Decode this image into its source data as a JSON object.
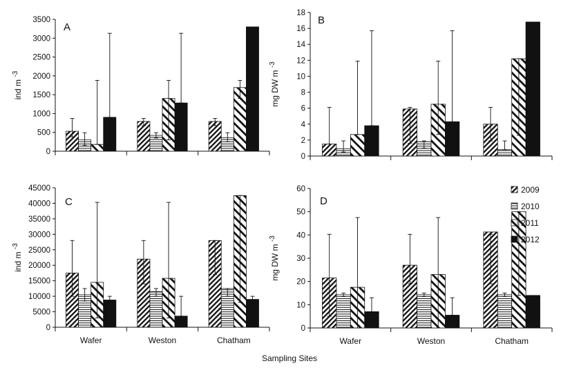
{
  "figure": {
    "xlabel": "Sampling Sites"
  },
  "legend": {
    "entries": [
      {
        "label": "2009",
        "pattern": "diag"
      },
      {
        "label": "2010",
        "pattern": "horiz"
      },
      {
        "label": "2011",
        "pattern": "diagwide"
      },
      {
        "label": "2012",
        "pattern": "solid"
      }
    ]
  },
  "colors": {
    "ink": "#111111",
    "background": "#ffffff"
  },
  "chart_data": [
    {
      "type": "bar",
      "panel_label": "A",
      "ylabel": "ind m",
      "ylabel_sup": "-3",
      "categories": [
        "Wafer",
        "Weston",
        "Chatham"
      ],
      "ylim": [
        0,
        3500
      ],
      "yticks": [
        0,
        500,
        1000,
        1500,
        2000,
        2500,
        3000,
        3500
      ],
      "tick_labels": [
        "0",
        "500",
        "1000",
        "1500",
        "2000",
        "2500",
        "3000",
        "3500"
      ],
      "show_category_labels": false,
      "series": [
        {
          "name": "2009",
          "values": [
            530,
            790,
            790
          ],
          "err_low": [
            380,
            680,
            680
          ],
          "err_high": [
            870,
            870,
            870
          ]
        },
        {
          "name": "2010",
          "values": [
            300,
            420,
            360
          ],
          "err_low": [
            150,
            350,
            250
          ],
          "err_high": [
            490,
            490,
            490
          ]
        },
        {
          "name": "2011",
          "values": [
            180,
            1400,
            1690
          ],
          "err_low": [
            180,
            300,
            1400
          ],
          "err_high": [
            1880,
            1880,
            1880
          ]
        },
        {
          "name": "2012",
          "values": [
            900,
            1280,
            3300
          ],
          "err_low": [
            900,
            1280,
            3300
          ],
          "err_high": [
            3130,
            3130,
            3300
          ]
        }
      ]
    },
    {
      "type": "bar",
      "panel_label": "B",
      "ylabel": "mg DW m",
      "ylabel_sup": "-3",
      "categories": [
        "Wafer",
        "Weston",
        "Chatham"
      ],
      "ylim": [
        0,
        18
      ],
      "yticks": [
        0,
        2,
        4,
        6,
        8,
        10,
        12,
        14,
        16,
        18
      ],
      "tick_labels": [
        "0",
        "2",
        "4",
        "6",
        "8",
        "10",
        "12",
        "14",
        "16",
        "18"
      ],
      "show_category_labels": false,
      "series": [
        {
          "name": "2009",
          "values": [
            1.5,
            5.9,
            4.0
          ],
          "err_low": [
            1.5,
            1.6,
            1.9
          ],
          "err_high": [
            6.1,
            6.1,
            6.1
          ]
        },
        {
          "name": "2010",
          "values": [
            0.9,
            1.8,
            0.8
          ],
          "err_low": [
            0.5,
            1.0,
            0.8
          ],
          "err_high": [
            1.9,
            1.9,
            1.9
          ]
        },
        {
          "name": "2011",
          "values": [
            2.7,
            6.5,
            12.2
          ],
          "err_low": [
            2.7,
            2.7,
            2.6
          ],
          "err_high": [
            11.9,
            11.9,
            12.2
          ]
        },
        {
          "name": "2012",
          "values": [
            3.8,
            4.3,
            16.8
          ],
          "err_low": [
            3.8,
            4.3,
            16.8
          ],
          "err_high": [
            15.7,
            15.7,
            16.8
          ]
        }
      ]
    },
    {
      "type": "bar",
      "panel_label": "C",
      "ylabel": "ind m",
      "ylabel_sup": "-3",
      "categories": [
        "Wafer",
        "Weston",
        "Chatham"
      ],
      "ylim": [
        0,
        45000
      ],
      "yticks": [
        0,
        5000,
        10000,
        15000,
        20000,
        25000,
        30000,
        35000,
        40000,
        45000
      ],
      "tick_labels": [
        "0",
        "5000",
        "10000",
        "15000",
        "20000",
        "25000",
        "30000",
        "35000",
        "40000",
        "45000"
      ],
      "show_category_labels": true,
      "series": [
        {
          "name": "2009",
          "values": [
            17500,
            22000,
            28000
          ],
          "err_low": [
            10000,
            14000,
            17000
          ],
          "err_high": [
            28000,
            28000,
            28000
          ]
        },
        {
          "name": "2010",
          "values": [
            10500,
            11500,
            12500
          ],
          "err_low": [
            8500,
            10000,
            10000
          ],
          "err_high": [
            12500,
            12500,
            12500
          ]
        },
        {
          "name": "2011",
          "values": [
            14500,
            15800,
            42500
          ],
          "err_low": [
            3000,
            3000,
            8000
          ],
          "err_high": [
            40300,
            40300,
            42500
          ]
        },
        {
          "name": "2012",
          "values": [
            8800,
            3600,
            9000
          ],
          "err_low": [
            8000,
            3600,
            8000
          ],
          "err_high": [
            10000,
            10000,
            10000
          ]
        }
      ]
    },
    {
      "type": "bar",
      "panel_label": "D",
      "ylabel": "mg DW m",
      "ylabel_sup": "-3",
      "categories": [
        "Wafer",
        "Weston",
        "Chatham"
      ],
      "ylim": [
        0,
        60
      ],
      "yticks": [
        0,
        10,
        20,
        30,
        40,
        50,
        60
      ],
      "tick_labels": [
        "0",
        "10",
        "20",
        "30",
        "40",
        "50",
        "60"
      ],
      "show_category_labels": true,
      "series": [
        {
          "name": "2009",
          "values": [
            21.5,
            27,
            41.3
          ],
          "err_low": [
            5,
            19,
            19
          ],
          "err_high": [
            40.3,
            40.3,
            40.3
          ]
        },
        {
          "name": "2010",
          "values": [
            14.3,
            14.3,
            14.3
          ],
          "err_low": [
            13.5,
            13.5,
            13.5
          ],
          "err_high": [
            15,
            15,
            15
          ]
        },
        {
          "name": "2011",
          "values": [
            17.5,
            23,
            50
          ],
          "err_low": [
            0,
            0,
            14
          ],
          "err_high": [
            47.5,
            47.5,
            50
          ]
        },
        {
          "name": "2012",
          "values": [
            7,
            5.5,
            14
          ],
          "err_low": [
            7,
            5.5,
            14
          ],
          "err_high": [
            13,
            13,
            14
          ]
        }
      ]
    }
  ]
}
